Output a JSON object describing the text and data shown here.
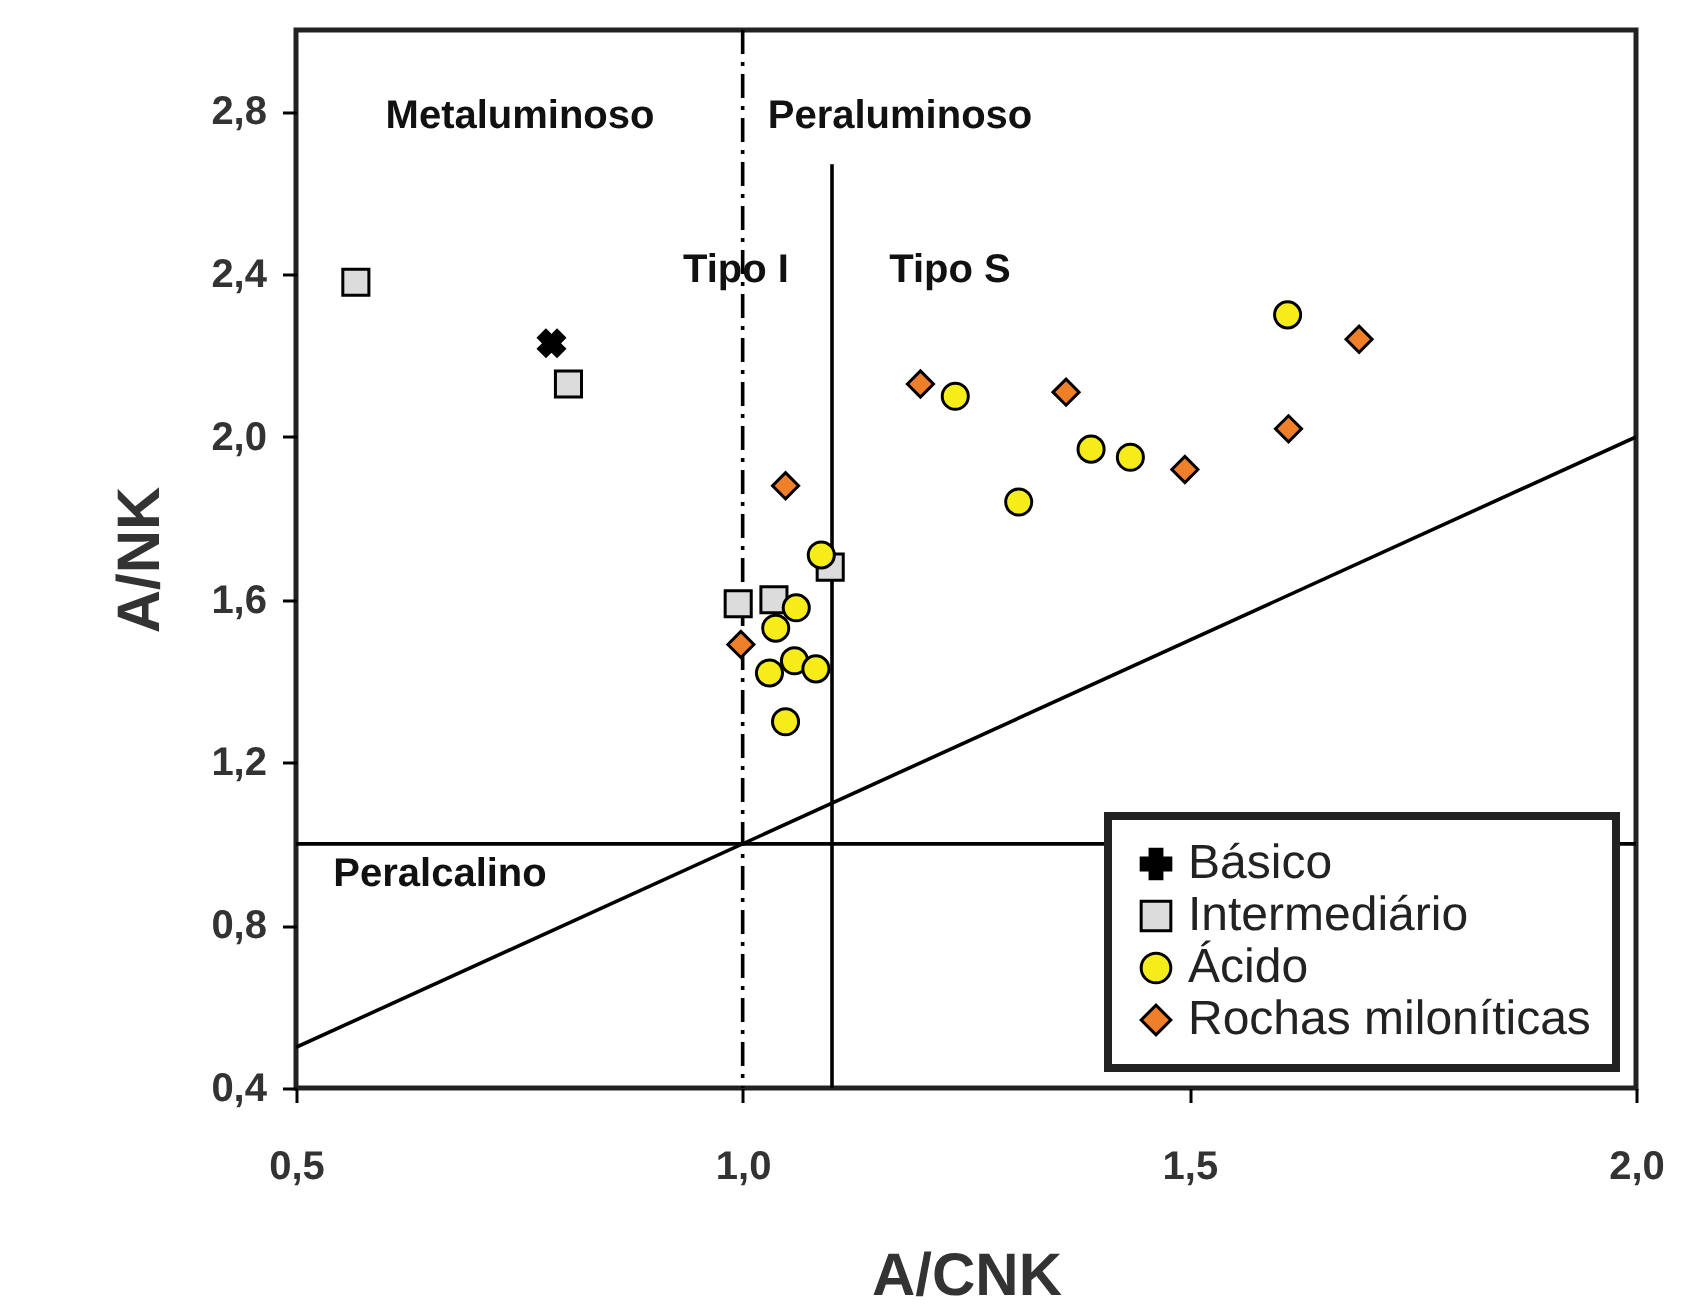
{
  "chart_data": {
    "type": "scatter",
    "xlabel": "A/CNK",
    "ylabel": "A/NK",
    "xlim": [
      0.5,
      2.0
    ],
    "ylim": [
      0.4,
      3.0
    ],
    "xticks": [
      {
        "value": 0.5,
        "label": "0,5"
      },
      {
        "value": 1.0,
        "label": "1,0"
      },
      {
        "value": 1.5,
        "label": "1,5"
      },
      {
        "value": 2.0,
        "label": "2,0"
      }
    ],
    "yticks": [
      {
        "value": 0.4,
        "label": "0,4"
      },
      {
        "value": 0.8,
        "label": "0,8"
      },
      {
        "value": 1.2,
        "label": "1,2"
      },
      {
        "value": 1.6,
        "label": "1,6"
      },
      {
        "value": 2.0,
        "label": "2,0"
      },
      {
        "value": 2.4,
        "label": "2,4"
      },
      {
        "value": 2.8,
        "label": "2,8"
      }
    ],
    "legend": "bottom right",
    "series": [
      {
        "name": "Básico",
        "color": "#000000",
        "marker": "cross",
        "x": [
          0.786
        ],
        "values": [
          2.23
        ]
      },
      {
        "name": "Intermediário",
        "color": "#dcdcdc",
        "marker": "square",
        "x": [
          0.567,
          0.805,
          0.995,
          1.035,
          1.098
        ],
        "values": [
          2.38,
          2.13,
          1.59,
          1.6,
          1.68
        ]
      },
      {
        "name": "Ácido",
        "color": "#f5ec1a",
        "marker": "circle",
        "x": [
          1.238,
          1.61,
          1.39,
          1.434,
          1.309,
          1.088,
          1.06,
          1.037,
          1.058,
          1.082,
          1.03,
          1.048
        ],
        "values": [
          2.1,
          2.3,
          1.97,
          1.95,
          1.84,
          1.71,
          1.58,
          1.53,
          1.45,
          1.43,
          1.42,
          1.3
        ]
      },
      {
        "name": "Rochas miloníticas",
        "color": "#f07f2a",
        "marker": "diamond",
        "x": [
          1.199,
          1.362,
          1.69,
          1.611,
          1.495,
          1.048,
          0.998
        ],
        "values": [
          2.13,
          2.11,
          2.24,
          2.02,
          1.92,
          1.88,
          1.49
        ]
      },
      {
        "type": "line",
        "color": "#000000",
        "line_style": "solid",
        "x": [
          0.5,
          2.0
        ],
        "values": [
          0.5,
          2.0
        ]
      },
      {
        "type": "line",
        "color": "#000000",
        "line_style": "solid",
        "x": [
          1.1,
          1.1
        ],
        "values": [
          0.4,
          2.67
        ]
      }
    ],
    "ref_lines": [
      {
        "axis": "x",
        "value": 1.0,
        "color": "#000000",
        "line_style": "dashed"
      },
      {
        "axis": "y",
        "value": 1.0,
        "color": "#000000",
        "line_style": "solid"
      }
    ],
    "annotations": [
      "Metaluminoso",
      "Peraluminoso",
      "Tipo I",
      "Tipo S",
      "Peralcalino"
    ]
  }
}
